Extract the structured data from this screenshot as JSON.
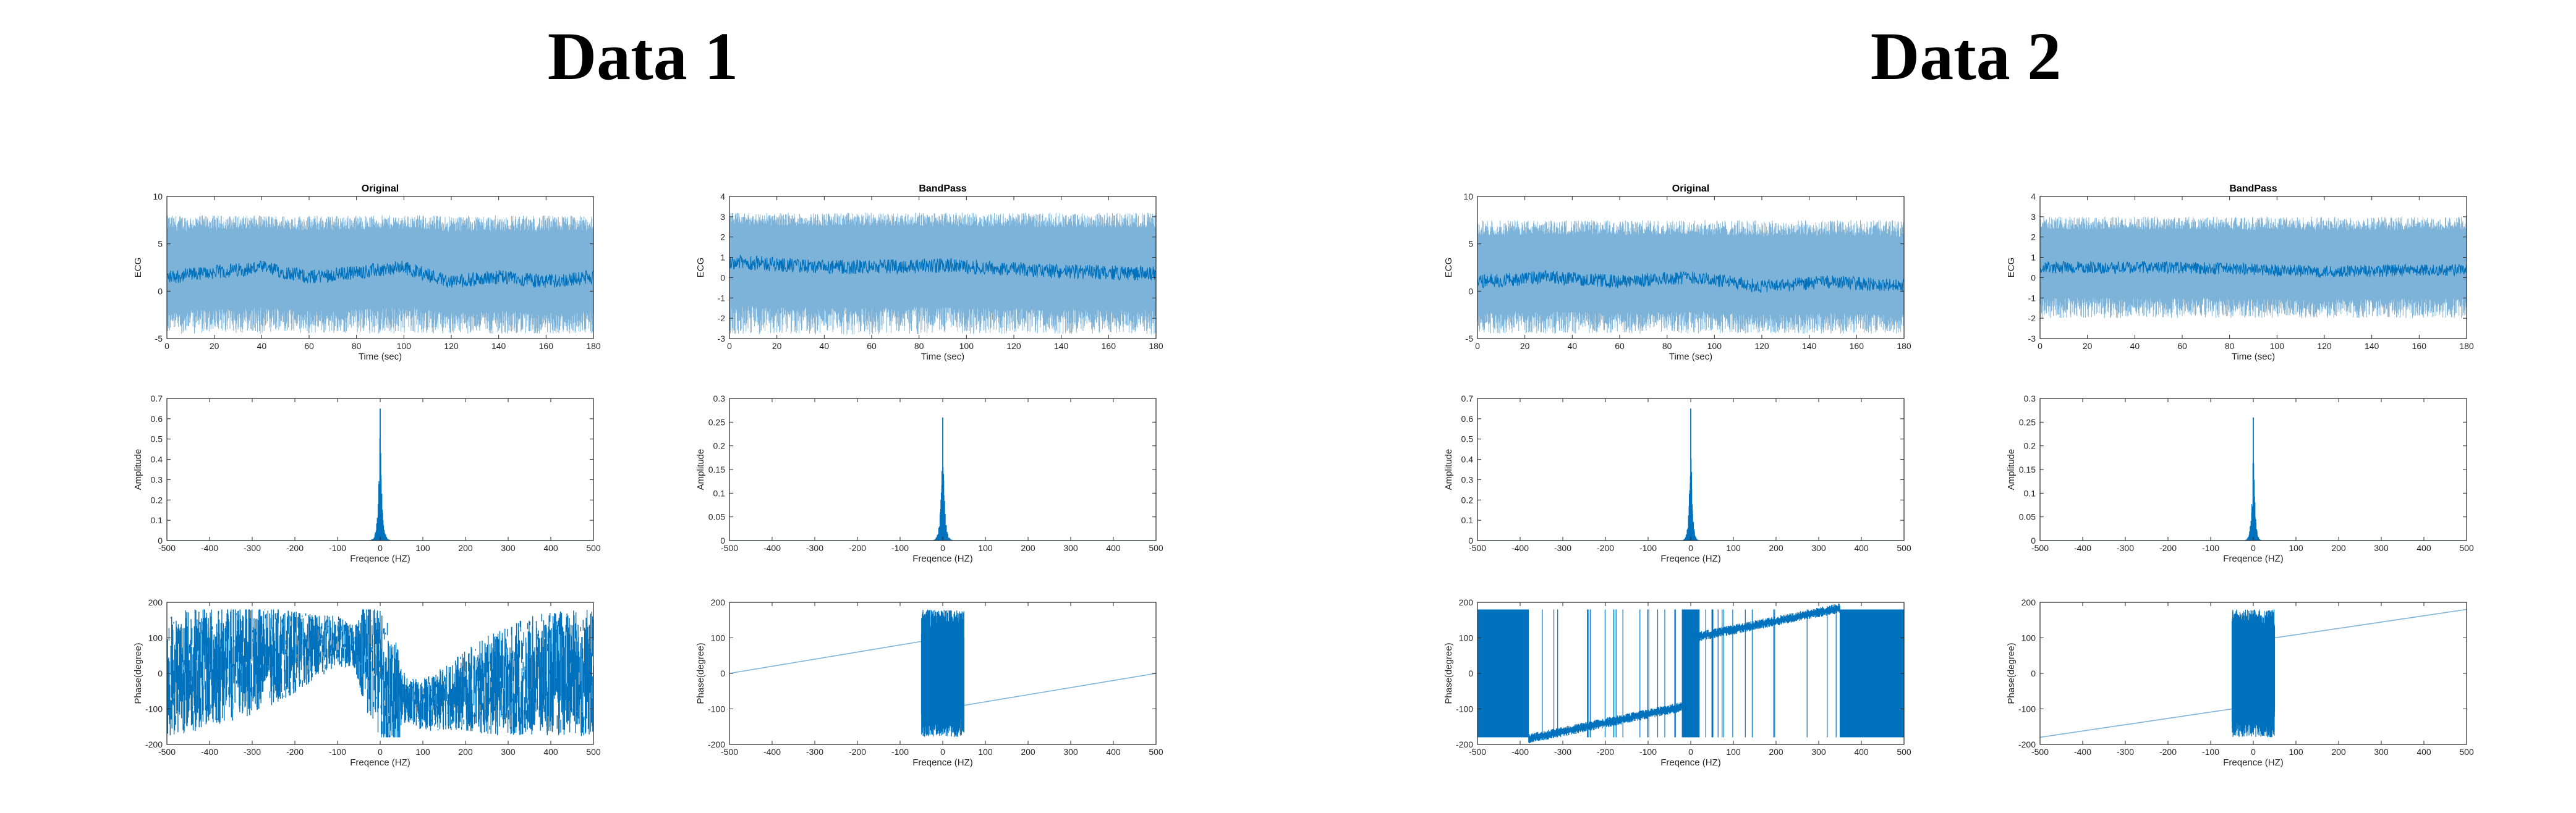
{
  "titles": {
    "data1": "Data 1",
    "data2": "Data 2"
  },
  "colors": {
    "line": "#0072BD",
    "light": "#7DB3D8",
    "axis": "#262626"
  },
  "chart_data": [
    {
      "id": "d1-orig-time",
      "group": "Data 1",
      "type": "line",
      "title": "Original",
      "xlabel": "Time (sec)",
      "ylabel": "ECG",
      "xlim": [
        0,
        180
      ],
      "ylim": [
        -5,
        10
      ],
      "xticks": [
        0,
        20,
        40,
        60,
        80,
        100,
        120,
        140,
        160,
        180
      ],
      "yticks": [
        -5,
        0,
        5,
        10
      ],
      "series": [
        {
          "style": "ecg",
          "baseline": [
            [
              0,
              1.5
            ],
            [
              20,
              2.0
            ],
            [
              40,
              2.5
            ],
            [
              60,
              1.5
            ],
            [
              80,
              2.0
            ],
            [
              100,
              2.5
            ],
            [
              120,
              1.0
            ],
            [
              140,
              1.5
            ],
            [
              160,
              1.0
            ],
            [
              180,
              1.5
            ]
          ],
          "upper": 8.0,
          "lower": -4.5
        }
      ]
    },
    {
      "id": "d1-band-time",
      "group": "Data 1",
      "type": "line",
      "title": "BandPass",
      "xlabel": "Time (sec)",
      "ylabel": "ECG",
      "xlim": [
        0,
        180
      ],
      "ylim": [
        -3,
        4
      ],
      "xticks": [
        0,
        20,
        40,
        60,
        80,
        100,
        120,
        140,
        160,
        180
      ],
      "yticks": [
        -3,
        -2,
        -1,
        0,
        1,
        2,
        3,
        4
      ],
      "series": [
        {
          "style": "ecg",
          "baseline": [
            [
              0,
              0.8
            ],
            [
              40,
              0.5
            ],
            [
              90,
              0.6
            ],
            [
              140,
              0.3
            ],
            [
              180,
              0.2
            ]
          ],
          "upper": 3.2,
          "lower": -2.8
        }
      ]
    },
    {
      "id": "d1-orig-amp",
      "group": "Data 1",
      "type": "line",
      "xlabel": "Freqence (HZ)",
      "ylabel": "Amplitude",
      "xlim": [
        -500,
        500
      ],
      "ylim": [
        0,
        0.7
      ],
      "xticks": [
        -500,
        -400,
        -300,
        -200,
        -100,
        0,
        100,
        200,
        300,
        400,
        500
      ],
      "yticks": [
        0,
        0.1,
        0.2,
        0.3,
        0.4,
        0.5,
        0.6,
        0.7
      ],
      "series": [
        {
          "style": "spectrum",
          "peak": 0.65,
          "halfwidth": 12
        }
      ]
    },
    {
      "id": "d1-band-amp",
      "group": "Data 1",
      "type": "line",
      "xlabel": "Freqence (HZ)",
      "ylabel": "Amplitude",
      "xlim": [
        -500,
        500
      ],
      "ylim": [
        0,
        0.3
      ],
      "xticks": [
        -500,
        -400,
        -300,
        -200,
        -100,
        0,
        100,
        200,
        300,
        400,
        500
      ],
      "yticks": [
        0,
        0.05,
        0.1,
        0.15,
        0.2,
        0.25,
        0.3
      ],
      "series": [
        {
          "style": "spectrum",
          "peak": 0.26,
          "halfwidth": 12
        }
      ]
    },
    {
      "id": "d1-orig-phase",
      "group": "Data 1",
      "type": "line",
      "xlabel": "Freqence (HZ)",
      "ylabel": "Phase(degree)",
      "xlim": [
        -500,
        500
      ],
      "ylim": [
        -200,
        200
      ],
      "xticks": [
        -500,
        -400,
        -300,
        -200,
        -100,
        0,
        100,
        200,
        300,
        400,
        500
      ],
      "yticks": [
        -200,
        -100,
        0,
        100,
        200
      ],
      "series": [
        {
          "style": "phase-noise",
          "center": [
            [
              -500,
              0
            ],
            [
              -400,
              20
            ],
            [
              -300,
              40
            ],
            [
              -200,
              60
            ],
            [
              -100,
              90
            ],
            [
              -30,
              60
            ],
            [
              0,
              0
            ],
            [
              30,
              -60
            ],
            [
              100,
              -90
            ],
            [
              200,
              -50
            ],
            [
              300,
              -20
            ],
            [
              400,
              0
            ],
            [
              500,
              0
            ]
          ],
          "amp": [
            [
              -500,
              180
            ],
            [
              -350,
              170
            ],
            [
              -250,
              140
            ],
            [
              -150,
              90
            ],
            [
              -60,
              60
            ],
            [
              -30,
              180
            ],
            [
              30,
              180
            ],
            [
              60,
              60
            ],
            [
              150,
              90
            ],
            [
              250,
              140
            ],
            [
              350,
              170
            ],
            [
              500,
              180
            ]
          ]
        }
      ]
    },
    {
      "id": "d1-band-phase",
      "group": "Data 1",
      "type": "line",
      "xlabel": "Freqence (HZ)",
      "ylabel": "Phase(degree)",
      "xlim": [
        -500,
        500
      ],
      "ylim": [
        -200,
        200
      ],
      "xticks": [
        -500,
        -400,
        -300,
        -200,
        -100,
        0,
        100,
        200,
        300,
        400,
        500
      ],
      "yticks": [
        -200,
        -100,
        0,
        100,
        200
      ],
      "series": [
        {
          "style": "phase-band",
          "left": [
            [
              -500,
              0
            ],
            [
              -50,
              90
            ]
          ],
          "right": [
            [
              50,
              -90
            ],
            [
              500,
              0
            ]
          ],
          "band": [
            -50,
            50
          ]
        }
      ]
    },
    {
      "id": "d2-orig-time",
      "group": "Data 2",
      "type": "line",
      "title": "Original",
      "xlabel": "Time (sec)",
      "ylabel": "ECG",
      "xlim": [
        0,
        180
      ],
      "ylim": [
        -5,
        10
      ],
      "xticks": [
        0,
        20,
        40,
        60,
        80,
        100,
        120,
        140,
        160,
        180
      ],
      "yticks": [
        -5,
        0,
        5,
        10
      ],
      "series": [
        {
          "style": "ecg",
          "baseline": [
            [
              0,
              1.0
            ],
            [
              30,
              1.5
            ],
            [
              60,
              1.0
            ],
            [
              90,
              1.5
            ],
            [
              120,
              0.5
            ],
            [
              150,
              1.0
            ],
            [
              180,
              0.5
            ]
          ],
          "upper": 7.5,
          "lower": -4.5
        }
      ]
    },
    {
      "id": "d2-band-time",
      "group": "Data 2",
      "type": "line",
      "title": "BandPass",
      "xlabel": "Time (sec)",
      "ylabel": "ECG",
      "xlim": [
        0,
        180
      ],
      "ylim": [
        -3,
        4
      ],
      "xticks": [
        0,
        20,
        40,
        60,
        80,
        100,
        120,
        140,
        160,
        180
      ],
      "yticks": [
        -3,
        -2,
        -1,
        0,
        1,
        2,
        3,
        4
      ],
      "series": [
        {
          "style": "ecg",
          "baseline": [
            [
              0,
              0.5
            ],
            [
              60,
              0.5
            ],
            [
              120,
              0.3
            ],
            [
              180,
              0.4
            ]
          ],
          "upper": 3.0,
          "lower": -2.0
        }
      ]
    },
    {
      "id": "d2-orig-amp",
      "group": "Data 2",
      "type": "line",
      "xlabel": "Freqence (HZ)",
      "ylabel": "Amplitude",
      "xlim": [
        -500,
        500
      ],
      "ylim": [
        0,
        0.7
      ],
      "xticks": [
        -500,
        -400,
        -300,
        -200,
        -100,
        0,
        100,
        200,
        300,
        400,
        500
      ],
      "yticks": [
        0,
        0.1,
        0.2,
        0.3,
        0.4,
        0.5,
        0.6,
        0.7
      ],
      "series": [
        {
          "style": "spectrum",
          "peak": 0.65,
          "halfwidth": 10
        }
      ]
    },
    {
      "id": "d2-band-amp",
      "group": "Data 2",
      "type": "line",
      "xlabel": "Freqence (HZ)",
      "ylabel": "Amplitude",
      "xlim": [
        -500,
        500
      ],
      "ylim": [
        0,
        0.3
      ],
      "xticks": [
        -500,
        -400,
        -300,
        -200,
        -100,
        0,
        100,
        200,
        300,
        400,
        500
      ],
      "yticks": [
        0,
        0.05,
        0.1,
        0.15,
        0.2,
        0.25,
        0.3
      ],
      "series": [
        {
          "style": "spectrum",
          "peak": 0.26,
          "halfwidth": 10
        }
      ]
    },
    {
      "id": "d2-orig-phase",
      "group": "Data 2",
      "type": "line",
      "xlabel": "Freqence (HZ)",
      "ylabel": "Phase(degree)",
      "xlim": [
        -500,
        500
      ],
      "ylim": [
        -200,
        200
      ],
      "xticks": [
        -500,
        -400,
        -300,
        -200,
        -100,
        0,
        100,
        200,
        300,
        400,
        500
      ],
      "yticks": [
        -200,
        -100,
        0,
        100,
        200
      ],
      "series": [
        {
          "style": "phase-ramp",
          "noise_left": [
            -500,
            -380
          ],
          "noise_right": [
            350,
            500
          ],
          "left_trend": [
            [
              -380,
              -180
            ],
            [
              -20,
              -90
            ]
          ],
          "right_trend": [
            [
              20,
              100
            ],
            [
              350,
              180
            ]
          ]
        }
      ]
    },
    {
      "id": "d2-band-phase",
      "group": "Data 2",
      "type": "line",
      "xlabel": "Freqence (HZ)",
      "ylabel": "Phase(degree)",
      "xlim": [
        -500,
        500
      ],
      "ylim": [
        -200,
        200
      ],
      "xticks": [
        -500,
        -400,
        -300,
        -200,
        -100,
        0,
        100,
        200,
        300,
        400,
        500
      ],
      "yticks": [
        -200,
        -100,
        0,
        100,
        200
      ],
      "series": [
        {
          "style": "phase-band",
          "left": [
            [
              -500,
              -180
            ],
            [
              -50,
              -100
            ]
          ],
          "right": [
            [
              50,
              100
            ],
            [
              500,
              180
            ]
          ],
          "band": [
            -50,
            50
          ]
        }
      ]
    }
  ]
}
